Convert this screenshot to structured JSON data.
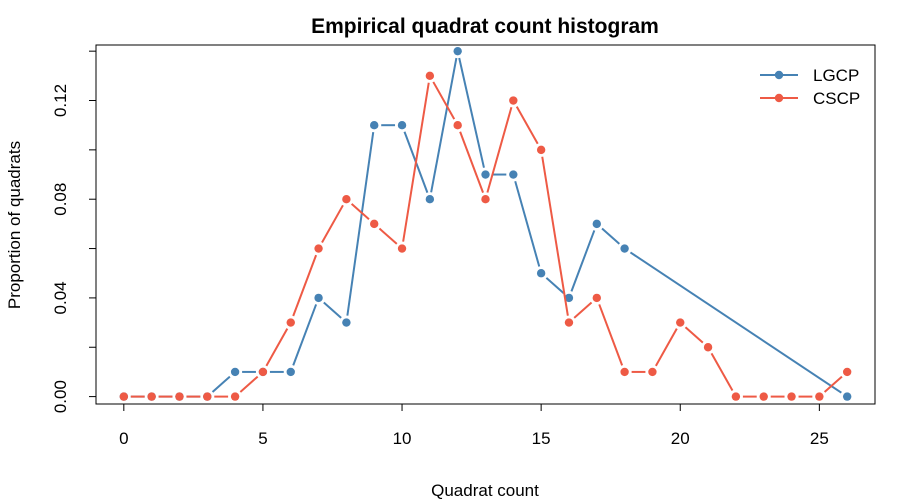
{
  "chart_data": {
    "type": "line",
    "title": "Empirical quadrat count histogram",
    "xlabel": "Quadrat count",
    "ylabel": "Proportion of quadrats",
    "xlim": [
      -1,
      27
    ],
    "ylim": [
      -0.003,
      0.1425
    ],
    "x_ticks": [
      0,
      5,
      10,
      15,
      20,
      25
    ],
    "y_ticks": [
      0.0,
      0.04,
      0.08,
      0.12
    ],
    "x_tick_labels": [
      "0",
      "5",
      "10",
      "15",
      "20",
      "25"
    ],
    "y_tick_labels": [
      "0.00",
      "0.04",
      "0.08",
      "0.12"
    ],
    "grid": false,
    "legend": {
      "position": "top-right"
    },
    "x": [
      0,
      1,
      2,
      3,
      4,
      5,
      6,
      7,
      8,
      9,
      10,
      11,
      12,
      13,
      14,
      15,
      16,
      17,
      18,
      19,
      20,
      21,
      22,
      23,
      24,
      25,
      26
    ],
    "series": [
      {
        "name": "LGCP",
        "color": "#4682b4",
        "values": [
          0,
          0,
          0,
          0,
          0.01,
          0.01,
          0.01,
          0.04,
          0.03,
          0.11,
          0.11,
          0.08,
          0.14,
          0.09,
          0.09,
          0.05,
          0.04,
          0.07,
          0.06,
          null,
          null,
          null,
          null,
          null,
          null,
          null,
          0
        ]
      },
      {
        "name": "CSCP",
        "color": "#ee5a45",
        "values": [
          0,
          0,
          0,
          0,
          0,
          0.01,
          0.03,
          0.06,
          0.08,
          0.07,
          0.06,
          0.13,
          0.11,
          0.08,
          0.12,
          0.1,
          0.03,
          0.04,
          0.01,
          0.01,
          0.03,
          0.02,
          0,
          0,
          0,
          0,
          0.01
        ]
      }
    ]
  }
}
